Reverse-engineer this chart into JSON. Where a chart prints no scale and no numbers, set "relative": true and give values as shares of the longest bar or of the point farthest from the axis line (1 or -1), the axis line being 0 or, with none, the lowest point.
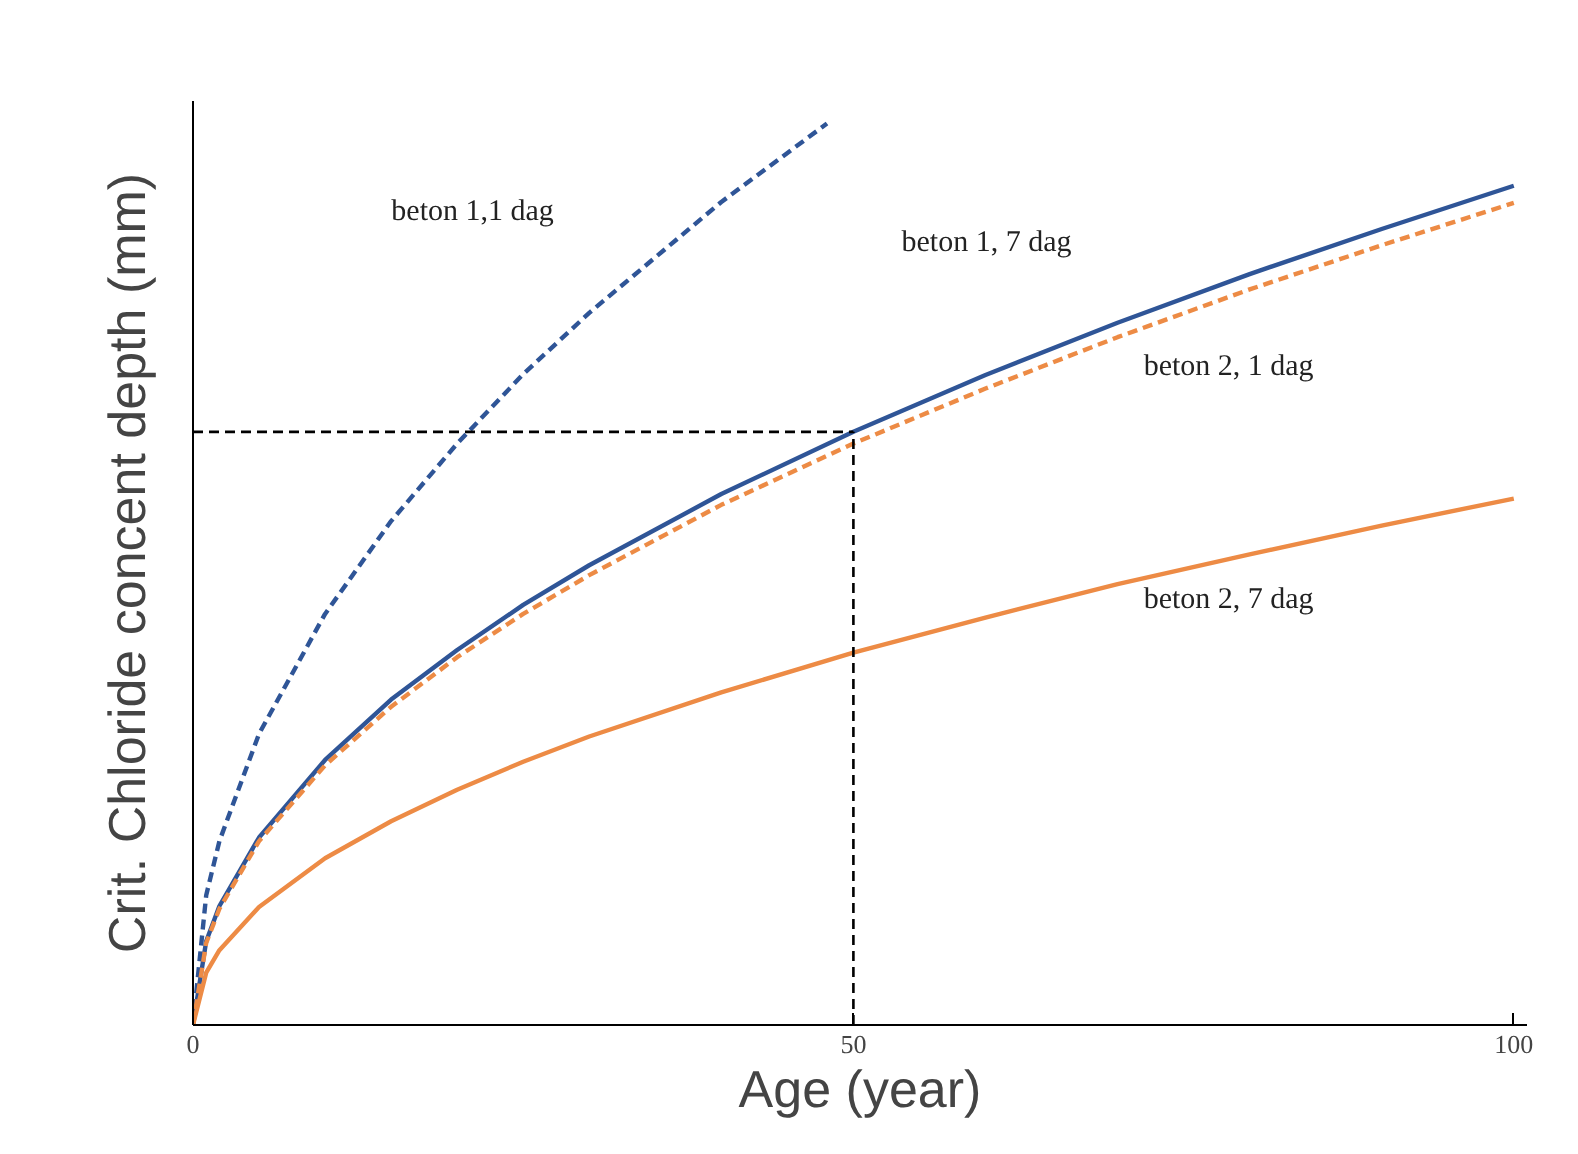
{
  "chart_data": {
    "type": "line",
    "relative": true,
    "xlabel": "Age (year)",
    "ylabel": "Crit. Chloride concent depth (mm)",
    "xlim": [
      0,
      101
    ],
    "xticks": [
      0,
      50,
      100
    ],
    "grid": false,
    "series": [
      {
        "name": "beton 1,1 dag",
        "color": "#2f5597",
        "line_style": "dashed",
        "x": [
          0,
          1,
          2,
          5,
          10,
          15,
          20,
          25,
          30,
          40,
          48
        ],
        "values": [
          0,
          0.144,
          0.204,
          0.323,
          0.456,
          0.559,
          0.645,
          0.722,
          0.79,
          0.913,
          1.0
        ]
      },
      {
        "name": "beton 1, 7 dag",
        "color": "#2f5597",
        "line_style": "solid",
        "x": [
          0,
          1,
          2,
          5,
          10,
          15,
          20,
          25,
          30,
          40,
          50,
          60,
          70,
          80,
          90,
          100
        ],
        "values": [
          0,
          0.093,
          0.132,
          0.208,
          0.294,
          0.361,
          0.416,
          0.466,
          0.51,
          0.589,
          0.658,
          0.721,
          0.779,
          0.833,
          0.883,
          0.931
        ]
      },
      {
        "name": "beton 2, 1 dag",
        "color": "#ed8b45",
        "line_style": "dashed",
        "x": [
          0,
          1,
          2,
          5,
          10,
          15,
          20,
          25,
          30,
          40,
          50,
          60,
          70,
          80,
          90,
          100
        ],
        "values": [
          0,
          0.091,
          0.129,
          0.204,
          0.288,
          0.353,
          0.408,
          0.456,
          0.499,
          0.577,
          0.645,
          0.706,
          0.763,
          0.816,
          0.865,
          0.912
        ]
      },
      {
        "name": "beton 2, 7 dag",
        "color": "#ed8b45",
        "line_style": "solid",
        "x": [
          0,
          1,
          2,
          5,
          10,
          15,
          20,
          25,
          30,
          40,
          50,
          60,
          70,
          80,
          90,
          100
        ],
        "values": [
          0,
          0.058,
          0.083,
          0.131,
          0.185,
          0.226,
          0.261,
          0.292,
          0.32,
          0.369,
          0.413,
          0.452,
          0.489,
          0.522,
          0.554,
          0.584
        ]
      }
    ],
    "ref_lines": [
      {
        "axis": "y",
        "value": 0.658,
        "color": "#000000",
        "line_style": "dashed"
      },
      {
        "axis": "x",
        "value": 50,
        "color": "#000000",
        "line_style": "dashed"
      }
    ]
  }
}
